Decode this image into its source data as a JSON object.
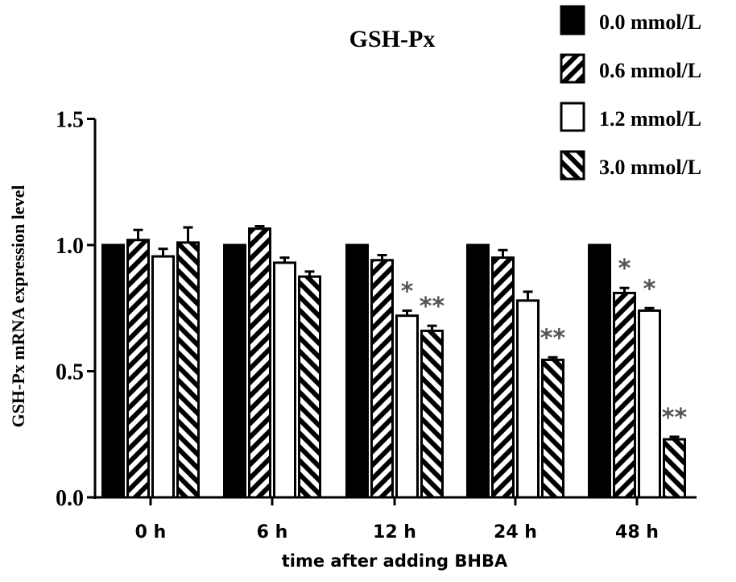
{
  "chart_data": {
    "type": "bar",
    "title": "GSH-Px",
    "xlabel": "time after adding BHBA",
    "ylabel": "GSH-Px  mRNA expression level",
    "ylim": [
      0,
      1.5
    ],
    "yticks": [
      "0.0",
      "0.5",
      "1.0",
      "1.5"
    ],
    "categories": [
      "0 h",
      "6 h",
      "12 h",
      "24 h",
      "48 h"
    ],
    "legend_position": "top-right",
    "series": [
      {
        "name": "0.0 mmol/L",
        "pattern": "solid-black",
        "values": [
          1.0,
          1.0,
          1.0,
          1.0,
          1.0
        ],
        "errors": [
          0,
          0,
          0,
          0,
          0
        ],
        "annotations": [
          "",
          "",
          "",
          "",
          ""
        ]
      },
      {
        "name": "0.6 mmol/L",
        "pattern": "forward-hatch",
        "values": [
          1.02,
          1.065,
          0.94,
          0.95,
          0.81
        ],
        "errors": [
          0.04,
          0.01,
          0.02,
          0.03,
          0.02
        ],
        "annotations": [
          "",
          "",
          "",
          "",
          "*"
        ]
      },
      {
        "name": "1.2 mmol/L",
        "pattern": "white",
        "values": [
          0.955,
          0.93,
          0.72,
          0.78,
          0.74
        ],
        "errors": [
          0.03,
          0.02,
          0.02,
          0.035,
          0.01
        ],
        "annotations": [
          "",
          "",
          "*",
          "",
          "*"
        ]
      },
      {
        "name": "3.0 mmol/L",
        "pattern": "back-hatch",
        "values": [
          1.01,
          0.875,
          0.66,
          0.545,
          0.23
        ],
        "errors": [
          0.06,
          0.02,
          0.02,
          0.01,
          0.01
        ],
        "annotations": [
          "",
          "",
          "**",
          "**",
          "**"
        ]
      }
    ]
  }
}
